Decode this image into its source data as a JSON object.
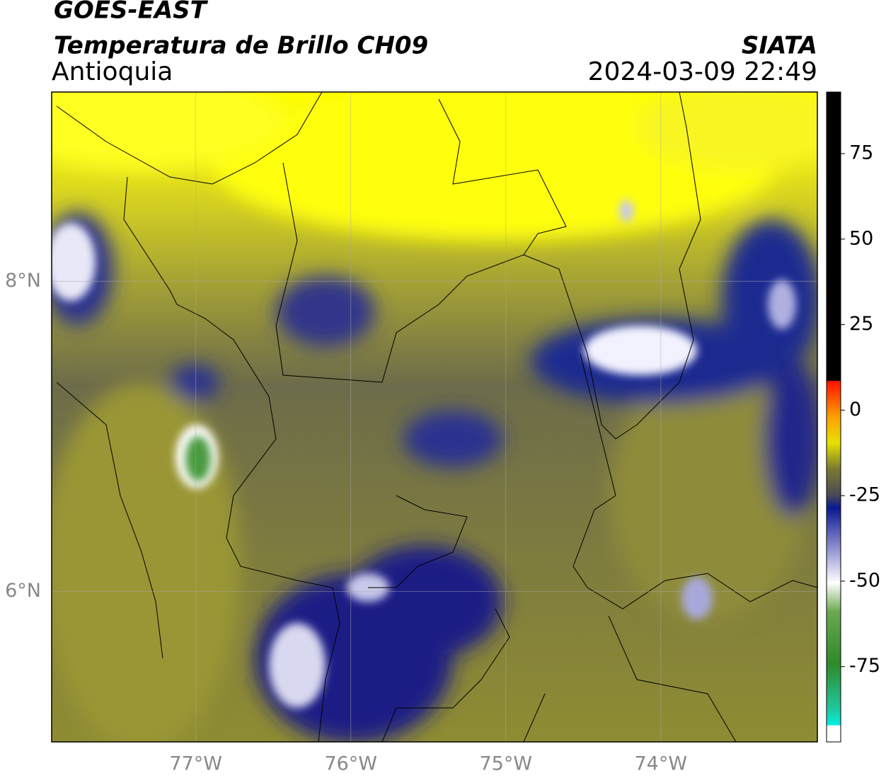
{
  "header": {
    "title": "GOES-EAST",
    "subtitle": "Temperatura de Brillo CH09",
    "source": "SIATA",
    "region": "Antioquia",
    "timestamp": "2024-03-09 22:49"
  },
  "map": {
    "xlim": [
      -77.93,
      -72.99
    ],
    "ylim": [
      5.03,
      9.22
    ],
    "xticks": [
      {
        "value": -77,
        "label": "77°W"
      },
      {
        "value": -76,
        "label": "76°W"
      },
      {
        "value": -75,
        "label": "75°W"
      },
      {
        "value": -74,
        "label": "74°W"
      }
    ],
    "yticks": [
      {
        "value": 8,
        "label": "8°N"
      },
      {
        "value": 6,
        "label": "6°N"
      }
    ],
    "grid": true
  },
  "colorbar": {
    "lim": [
      -97,
      93
    ],
    "ticks": [
      75,
      50,
      25,
      0,
      -25,
      -50,
      -75
    ]
  }
}
